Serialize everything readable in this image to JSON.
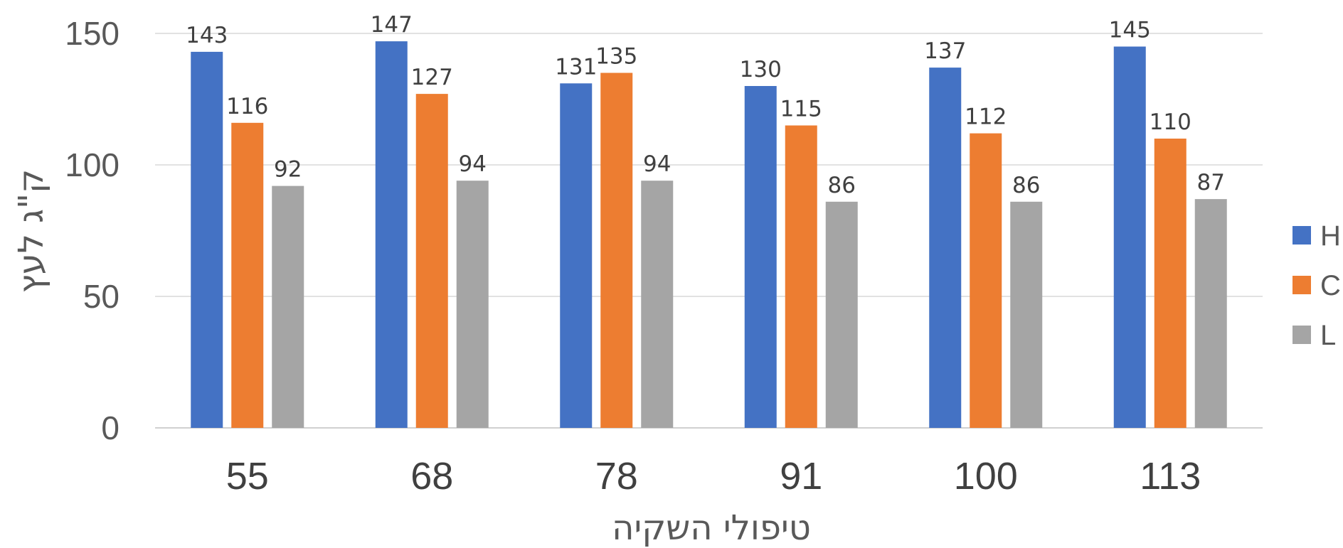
{
  "chart_data": {
    "type": "bar",
    "title": "",
    "xlabel": "טיפולי השקיה",
    "ylabel": "ק\"ג לעץ",
    "categories": [
      "55",
      "68",
      "78",
      "91",
      "100",
      "113"
    ],
    "series": [
      {
        "name": "H",
        "color": "#4472C4",
        "values": [
          143,
          147,
          131,
          130,
          137,
          145
        ]
      },
      {
        "name": "C",
        "color": "#ED7D31",
        "values": [
          116,
          127,
          135,
          115,
          112,
          110
        ]
      },
      {
        "name": "L",
        "color": "#A5A5A5",
        "values": [
          92,
          94,
          94,
          86,
          86,
          87
        ]
      }
    ],
    "ylim": [
      0,
      150
    ],
    "yticks": [
      "0",
      "50",
      "100",
      "150"
    ],
    "grid": true,
    "data_labels": true,
    "legend_position": "right"
  }
}
